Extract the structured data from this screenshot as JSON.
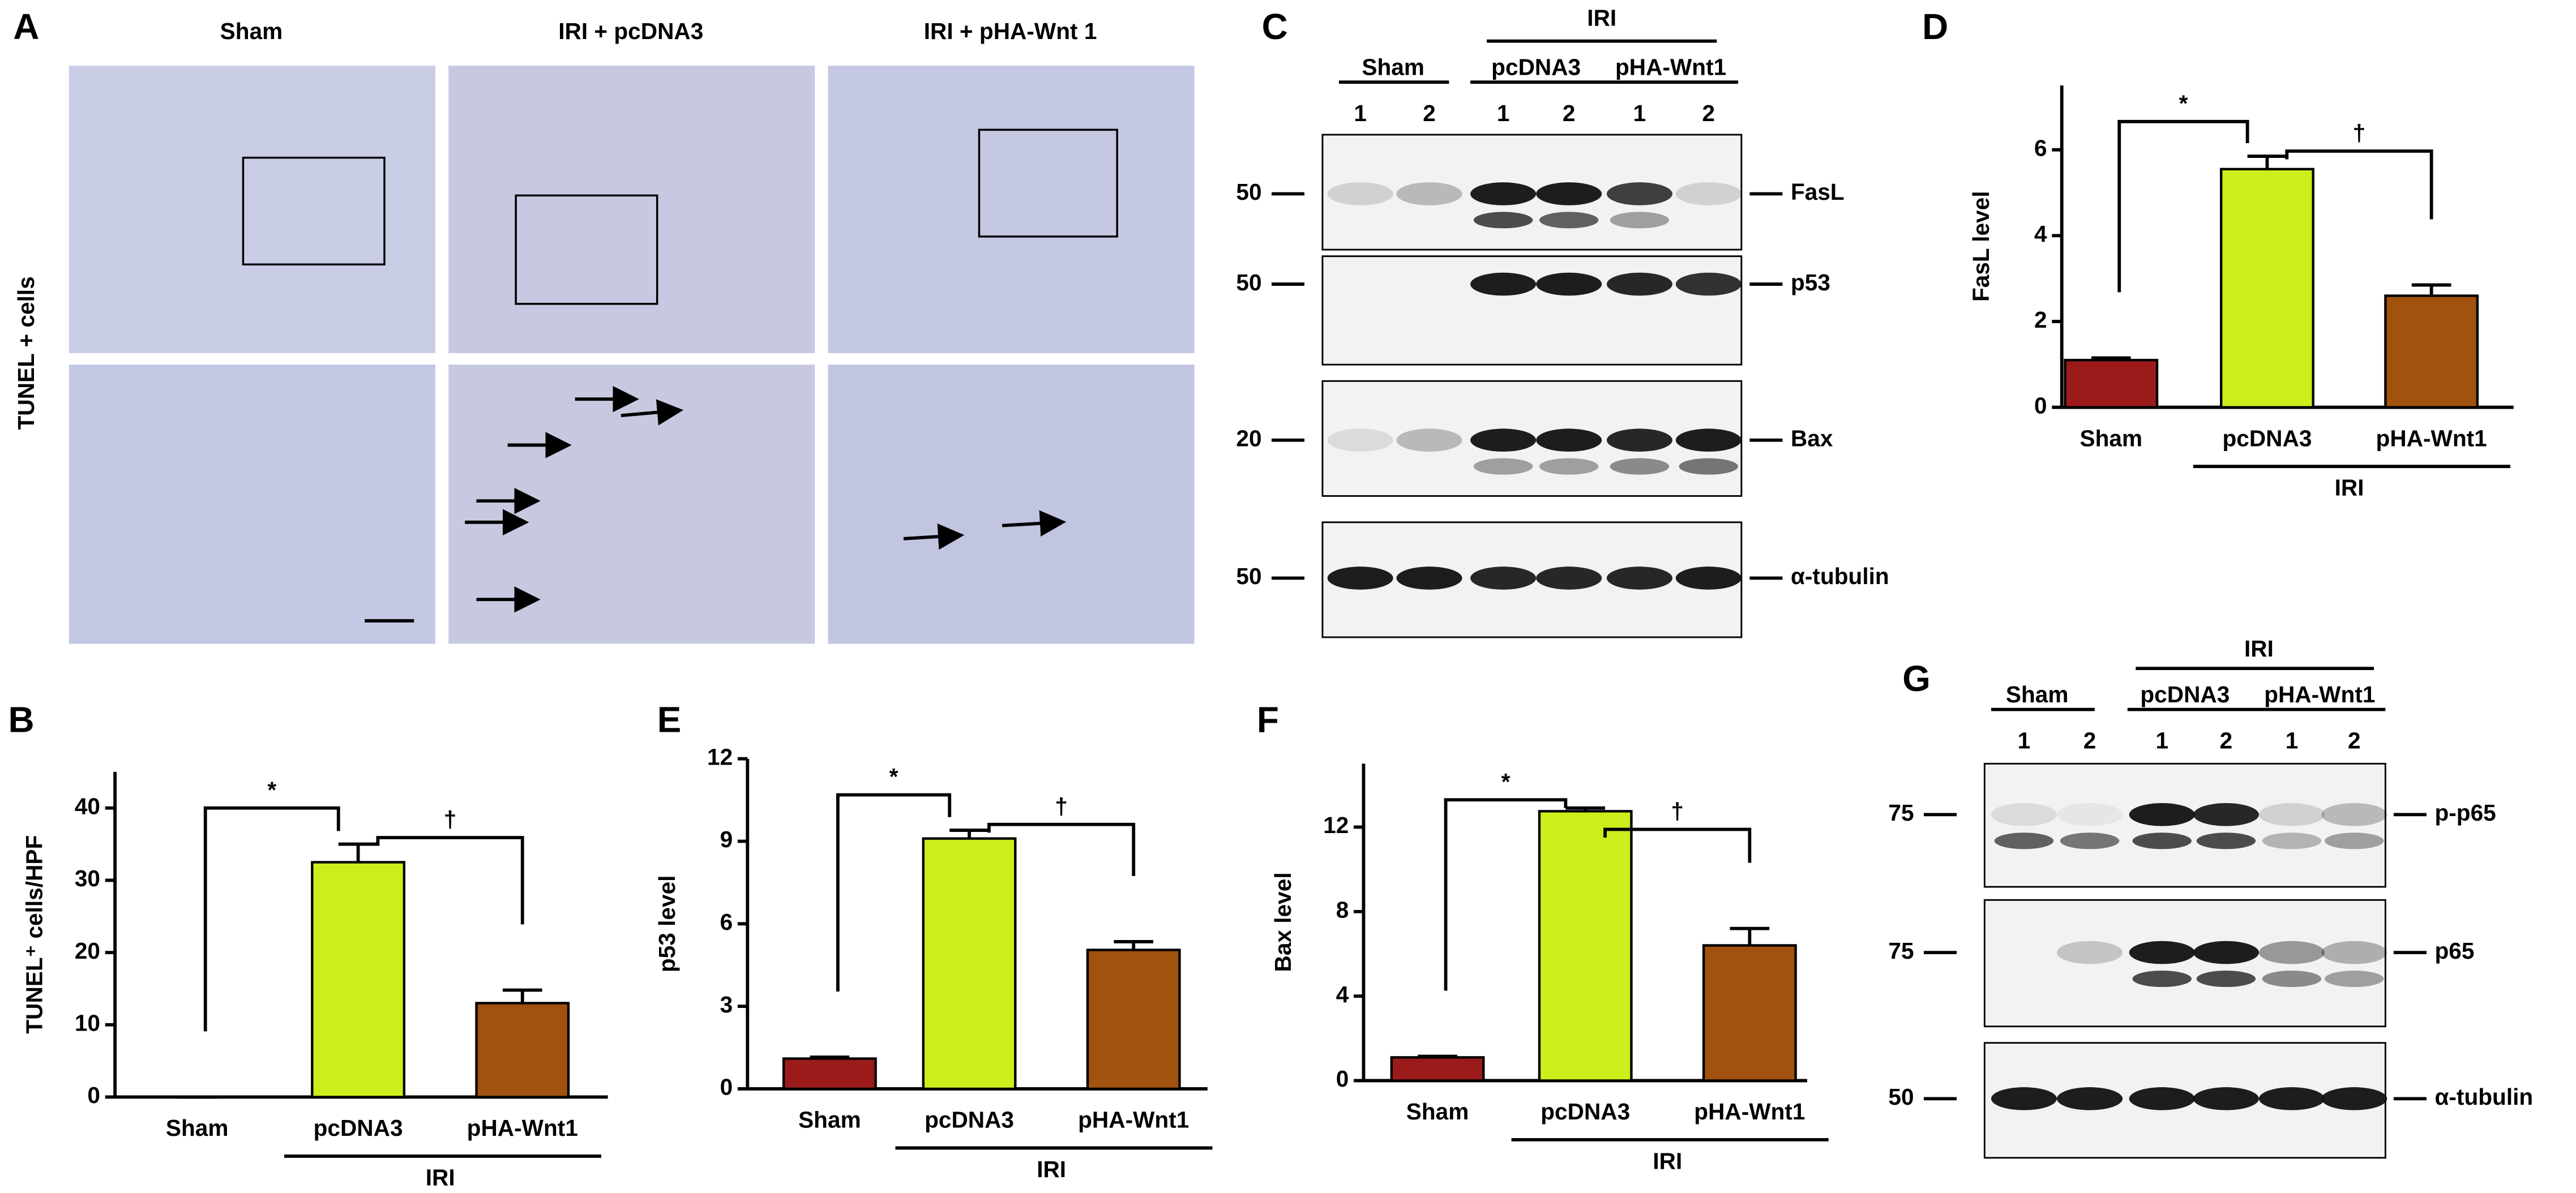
{
  "panels": {
    "A": {
      "letter": "A",
      "columns": [
        "Sham",
        "IRI + pcDNA3",
        "IRI + pHA-Wnt 1"
      ],
      "row_label": "TUNEL + cells"
    },
    "C": {
      "letter": "C",
      "group": "IRI",
      "conditions": [
        "Sham",
        "pcDNA3",
        "pHA-Wnt1"
      ],
      "lanes": [
        "1",
        "2",
        "1",
        "2",
        "1",
        "2"
      ],
      "blots": [
        {
          "label": "FasL",
          "mw": "50"
        },
        {
          "label": "p53",
          "mw": "50"
        },
        {
          "label": "Bax",
          "mw": "20"
        },
        {
          "label": "α-tubulin",
          "mw": "50"
        }
      ]
    },
    "G": {
      "letter": "G",
      "group": "IRI",
      "conditions": [
        "Sham",
        "pcDNA3",
        "pHA-Wnt1"
      ],
      "lanes": [
        "1",
        "2",
        "1",
        "2",
        "1",
        "2"
      ],
      "blots": [
        {
          "label": "p-p65",
          "mw": "75"
        },
        {
          "label": "p65",
          "mw": "75"
        },
        {
          "label": "α-tubulin",
          "mw": "50"
        }
      ]
    }
  },
  "chart_data": [
    {
      "type": "bar",
      "panel": "B",
      "ylabel": "TUNEL⁺ cells/HPF",
      "categories": [
        "Sham",
        "pcDNA3",
        "pHA-Wnt1"
      ],
      "values": [
        0,
        32.5,
        13
      ],
      "errors": [
        0,
        2.5,
        1.8
      ],
      "colors": [
        "#9b1b1b",
        "#ccee1b",
        "#a0520e"
      ],
      "ylim": [
        0,
        45
      ],
      "yticks": [
        0,
        10,
        20,
        30,
        40
      ],
      "group_label": "IRI",
      "significance": [
        "*",
        "†"
      ]
    },
    {
      "type": "bar",
      "panel": "D",
      "ylabel": "FasL level",
      "categories": [
        "Sham",
        "pcDNA3",
        "pHA-Wnt1"
      ],
      "values": [
        1.1,
        5.55,
        2.6
      ],
      "errors": [
        0.05,
        0.3,
        0.25
      ],
      "colors": [
        "#9b1b1b",
        "#ccee1b",
        "#a0520e"
      ],
      "ylim": [
        0,
        7.5
      ],
      "yticks": [
        0,
        2,
        4,
        6
      ],
      "group_label": "IRI",
      "significance": [
        "*",
        "†"
      ]
    },
    {
      "type": "bar",
      "panel": "E",
      "ylabel": "p53 level",
      "categories": [
        "Sham",
        "pcDNA3",
        "pHA-Wnt1"
      ],
      "values": [
        1.1,
        9.1,
        5.05
      ],
      "errors": [
        0.05,
        0.3,
        0.3
      ],
      "colors": [
        "#9b1b1b",
        "#ccee1b",
        "#a0520e"
      ],
      "ylim": [
        0,
        12
      ],
      "yticks": [
        0,
        3,
        6,
        9,
        12
      ],
      "group_label": "IRI",
      "significance": [
        "*",
        "†"
      ]
    },
    {
      "type": "bar",
      "panel": "F",
      "ylabel": "Bax level",
      "categories": [
        "Sham",
        "pcDNA3",
        "pHA-Wnt1"
      ],
      "values": [
        1.1,
        12.75,
        6.4
      ],
      "errors": [
        0.05,
        0.15,
        0.8
      ],
      "colors": [
        "#9b1b1b",
        "#ccee1b",
        "#a0520e"
      ],
      "ylim": [
        0,
        15
      ],
      "yticks": [
        0,
        4,
        8,
        12
      ],
      "group_label": "IRI",
      "significance": [
        "*",
        "†"
      ]
    }
  ]
}
